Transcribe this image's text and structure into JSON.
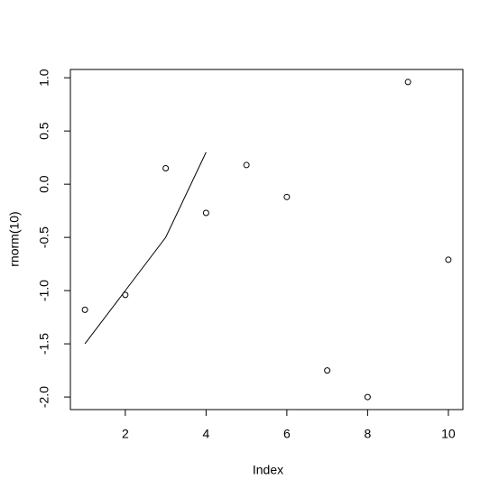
{
  "chart_data": {
    "type": "scatter",
    "x_label": "Index",
    "y_label": "rnorm(10)",
    "x": [
      1,
      2,
      3,
      4,
      5,
      6,
      7,
      8,
      9,
      10
    ],
    "values": [
      -1.18,
      -1.04,
      0.15,
      -0.27,
      0.18,
      -0.12,
      -1.75,
      -2.0,
      0.96,
      -0.71
    ],
    "color": "#000000",
    "line": {
      "x": [
        1,
        2,
        3,
        4
      ],
      "values": [
        -1.5,
        -1.0,
        -0.5,
        0.3
      ],
      "color": "#000000"
    },
    "xlim": [
      0.64,
      10.36
    ],
    "ylim": [
      -2.118,
      1.078
    ],
    "xticks": [
      2,
      4,
      6,
      8,
      10
    ],
    "yticks": [
      {
        "value": -2,
        "label": "-2.0"
      },
      -1.5,
      {
        "value": -1,
        "label": "-1.0"
      },
      -0.5,
      {
        "value": 0,
        "label": "0.0"
      },
      0.5,
      {
        "value": 1,
        "label": "1.0"
      }
    ],
    "grid": false
  }
}
